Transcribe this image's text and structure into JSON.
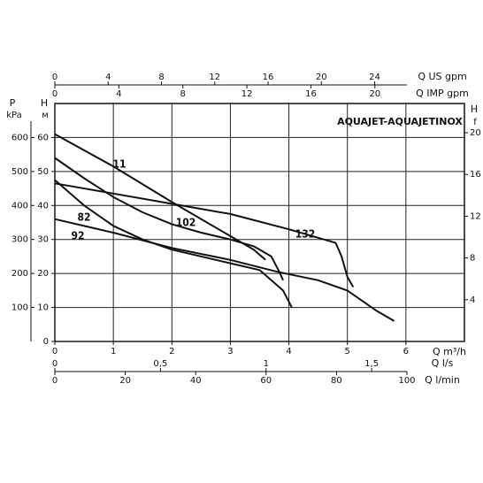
{
  "chart_data": {
    "type": "line",
    "title": "AQUAJET-AQUAJETINOX",
    "x_label": "Q m³/h",
    "xlim": [
      0,
      7
    ],
    "xticks": [
      0,
      1,
      2,
      3,
      4,
      5,
      6
    ],
    "y_label": "H",
    "y_unit": "м",
    "ylim": [
      0,
      70
    ],
    "yticks": [
      0,
      10,
      20,
      30,
      40,
      50,
      60
    ],
    "y2_label": "H",
    "y2_unit": "f",
    "y2lim": [
      0,
      22.8
    ],
    "y2ticks": [
      4,
      8,
      12,
      16,
      20
    ],
    "grid": true,
    "p_axis": {
      "label": "P",
      "unit": "kPa",
      "lim": [
        0,
        700
      ],
      "ticks": [
        100,
        200,
        300,
        400,
        500,
        600
      ]
    },
    "top_axes": [
      {
        "label": "Q US gpm",
        "lim": [
          0,
          26.42
        ],
        "ticks": [
          0,
          4,
          8,
          12,
          16,
          20,
          24
        ]
      },
      {
        "label": "Q IMP gpm",
        "lim": [
          0,
          22
        ],
        "ticks": [
          0,
          4,
          8,
          12,
          16,
          20
        ]
      }
    ],
    "bottom_axes": [
      {
        "label": "Q l/s",
        "lim": [
          0,
          1.667
        ],
        "ticks": [
          0,
          {
            "value": 0.5,
            "label": "0,5"
          },
          1,
          {
            "value": 1.5,
            "label": "1,5"
          }
        ]
      },
      {
        "label": "Q l/min",
        "lim": [
          0,
          100
        ],
        "ticks": [
          0,
          20,
          40,
          60,
          80,
          100
        ]
      }
    ],
    "series": [
      {
        "name": "11",
        "color": "#111111",
        "x": [
          0,
          1,
          2,
          3,
          3.4,
          3.6
        ],
        "values": [
          61,
          51.5,
          41,
          31,
          27,
          24
        ]
      },
      {
        "name": "102",
        "color": "#111111",
        "x": [
          0,
          0.5,
          1,
          1.5,
          2,
          2.5,
          3,
          3.4,
          3.7,
          3.85,
          3.9
        ],
        "values": [
          54,
          48,
          42.5,
          38,
          34.5,
          32,
          30,
          28,
          25,
          20,
          18
        ]
      },
      {
        "name": "132",
        "color": "#111111",
        "x": [
          0,
          1,
          2,
          3,
          4,
          4.8,
          4.9,
          5,
          5.1
        ],
        "values": [
          46.5,
          43.5,
          40.5,
          37.5,
          33,
          29,
          25,
          19,
          16
        ]
      },
      {
        "name": "82",
        "color": "#111111",
        "x": [
          0,
          0.5,
          1,
          1.5,
          2,
          3,
          3.5,
          3.9,
          4.05
        ],
        "values": [
          47.5,
          40,
          34,
          30,
          27,
          23,
          21,
          15,
          10
        ]
      },
      {
        "name": "92",
        "color": "#111111",
        "x": [
          0,
          1,
          2,
          3,
          3.8,
          4.5,
          5,
          5.5,
          5.8
        ],
        "values": [
          36,
          32,
          27.5,
          24,
          20.5,
          18,
          15,
          9,
          6
        ]
      }
    ]
  }
}
